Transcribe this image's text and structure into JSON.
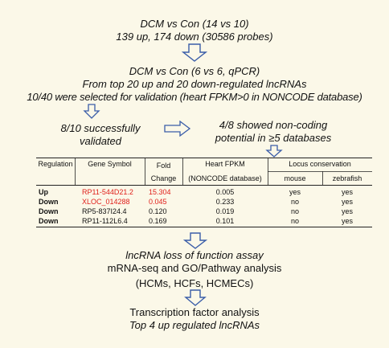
{
  "step1": {
    "line1": "DCM vs Con (14 vs 10)",
    "line2": "139 up, 174 down (30586 probes)"
  },
  "step2": {
    "line1": "DCM vs Con (6 vs 6, qPCR)",
    "line2": "From top 20 up and 20 down-regulated lncRNAs",
    "line3": "10/40 were selected for validation (heart FPKM>0 in NONCODE database)"
  },
  "step3": {
    "left_line1": "8/10 successfully",
    "left_line2": "validated",
    "right_line1": "4/8 showed non-coding",
    "right_line2": "potential in ≥5 databases"
  },
  "table": {
    "headers": {
      "regulation": "Regulation",
      "gene_symbol": "Gene Symbol",
      "fold_change_1": "Fold",
      "fold_change_2": "Change",
      "heart_fpkm_1": "Heart FPKM",
      "heart_fpkm_2": "(NONCODE database)",
      "locus_conservation": "Locus conservation",
      "mouse": "mouse",
      "zebrafish": "zebrafish"
    },
    "rows": [
      {
        "regulation": "Up",
        "gene": "RP11-544D21.2",
        "fold": "15.304",
        "fpkm": "0.005",
        "mouse": "yes",
        "zebrafish": "yes"
      },
      {
        "regulation": "Down",
        "gene": "XLOC_014288",
        "fold": "0.045",
        "fpkm": "0.233",
        "mouse": "no",
        "zebrafish": "yes"
      },
      {
        "regulation": "Down",
        "gene": "RP5-837I24.4",
        "fold": "0.120",
        "fpkm": "0.019",
        "mouse": "no",
        "zebrafish": "yes"
      },
      {
        "regulation": "Down",
        "gene": "RP11-112L6.4",
        "fold": "0.169",
        "fpkm": "0.101",
        "mouse": "no",
        "zebrafish": "yes"
      }
    ]
  },
  "step4": {
    "line1": "lncRNA loss of function assay",
    "line2": "mRNA-seq and GO/Pathway analysis",
    "line3": "(HCMs, HCFs, HCMECs)"
  },
  "step5": {
    "line1": "Transcription factor analysis",
    "line2": "Top 4 up regulated lncRNAs"
  },
  "colors": {
    "background": "#fbf8e8",
    "highlight": "#e0201b",
    "arrow_outline": "#3a5da8"
  }
}
